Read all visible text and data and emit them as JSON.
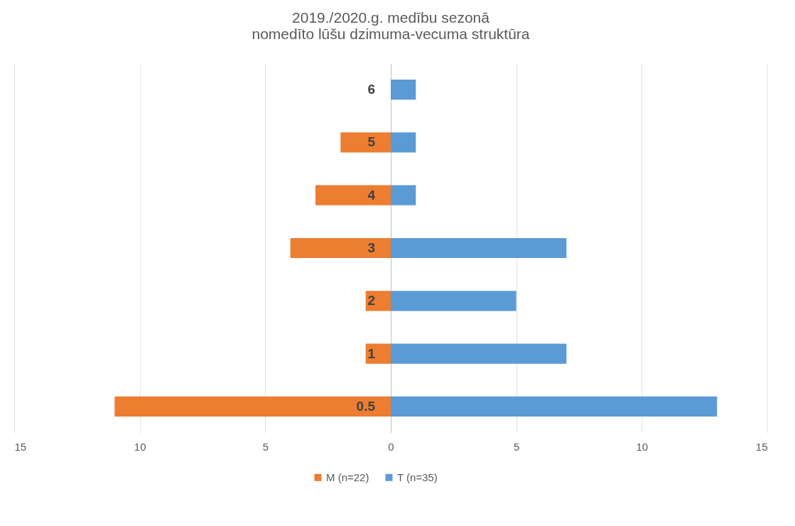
{
  "chart_data": {
    "type": "bar",
    "orientation": "horizontal",
    "stacked": true,
    "title": [
      "2019./2020.g. medību sezonā",
      "nomedīto lūšu dzimuma-vecuma struktūra"
    ],
    "categories": [
      "6",
      "5",
      "4",
      "3",
      "2",
      "1",
      "0.5"
    ],
    "series": [
      {
        "name": "M (n=22)",
        "color": "#ed7d31",
        "values": [
          0,
          -2,
          -3,
          -4,
          -1,
          -1,
          -11
        ]
      },
      {
        "name": "T (n=35)",
        "color": "#5b9bd5",
        "values": [
          1,
          1,
          1,
          7,
          5,
          7,
          13
        ]
      }
    ],
    "xlim": [
      -15,
      15
    ],
    "xticks": [
      {
        "value": -15,
        "label": "15"
      },
      {
        "value": -10,
        "label": "10"
      },
      {
        "value": -5,
        "label": "5"
      },
      0,
      5,
      10,
      15
    ],
    "grid": "x",
    "legend": "bottom"
  }
}
